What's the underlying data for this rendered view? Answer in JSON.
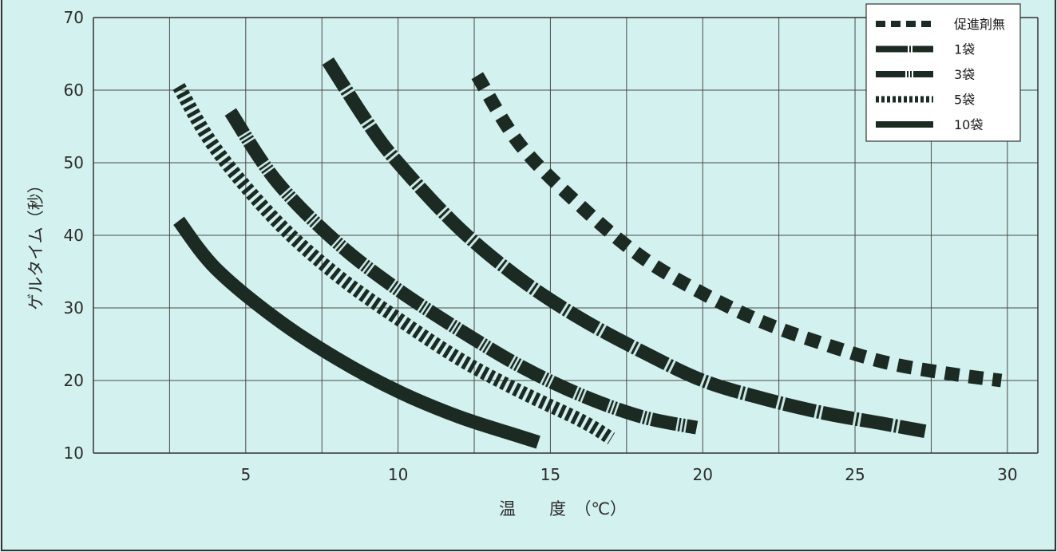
{
  "chart_data": {
    "type": "line",
    "title": "",
    "xlabel": "温　　度　（℃）",
    "ylabel": "ゲルタイム（秒）",
    "xlim": [
      0,
      31
    ],
    "ylim": [
      10,
      70
    ],
    "xticks": [
      5,
      10,
      15,
      20,
      25,
      30
    ],
    "yticks": [
      10,
      20,
      30,
      40,
      50,
      60,
      70
    ],
    "grid": true,
    "legend_position": "top-right",
    "series": [
      {
        "name": "促進剤無",
        "style": "dashed",
        "color": "#1c2a24",
        "x": [
          12.6,
          14,
          16,
          18,
          20,
          22,
          24,
          26,
          28,
          29.8
        ],
        "y": [
          62,
          52.5,
          44,
          37,
          32,
          28,
          25,
          22.5,
          21,
          20
        ]
      },
      {
        "name": "1袋",
        "style": "dashdot",
        "color": "#1c2a24",
        "x": [
          7.7,
          9,
          10,
          12,
          14,
          16,
          18,
          20,
          22,
          24,
          26,
          27.3
        ],
        "y": [
          64,
          55.5,
          50,
          41,
          34,
          28.5,
          24,
          20,
          17.5,
          15.5,
          14,
          13
        ]
      },
      {
        "name": "3袋",
        "style": "dashdotdot",
        "color": "#1c2a24",
        "x": [
          4.5,
          6,
          8,
          10,
          12,
          14,
          16,
          18,
          19.8
        ],
        "y": [
          57,
          47.5,
          39,
          32.5,
          27,
          22,
          18,
          15,
          13.5
        ]
      },
      {
        "name": "5袋",
        "style": "dotted",
        "color": "#1c2a24",
        "x": [
          2.8,
          4,
          6,
          8,
          10,
          12,
          14,
          16,
          17
        ],
        "y": [
          60.5,
          52,
          42,
          34.5,
          28.5,
          23,
          18.5,
          14.5,
          12
        ]
      },
      {
        "name": "10袋",
        "style": "solid",
        "color": "#1c2a24",
        "x": [
          2.8,
          4,
          6,
          8,
          10,
          12,
          14,
          14.6
        ],
        "y": [
          42,
          35.5,
          28.5,
          23,
          18.5,
          15,
          12.3,
          11.5
        ]
      }
    ]
  }
}
